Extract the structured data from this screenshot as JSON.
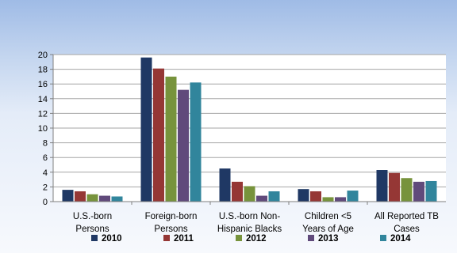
{
  "chart_data": {
    "type": "bar",
    "title": "",
    "xlabel": "",
    "ylabel": "",
    "ylim": [
      0,
      20
    ],
    "yticks": [
      0,
      2,
      4,
      6,
      8,
      10,
      12,
      14,
      16,
      18,
      20
    ],
    "grid": true,
    "legend_position": "bottom",
    "categories": [
      [
        "U.S.-born",
        "Persons"
      ],
      [
        "Foreign-born",
        "Persons"
      ],
      [
        "U.S.-born Non-",
        "Hispanic Blacks"
      ],
      [
        "Children <5",
        "Years of Age"
      ],
      [
        "All Reported TB",
        "Cases"
      ]
    ],
    "series": [
      {
        "name": "2010",
        "color": "#1f3864",
        "values": [
          1.6,
          19.6,
          4.5,
          1.7,
          4.3
        ]
      },
      {
        "name": "2011",
        "color": "#953735",
        "values": [
          1.4,
          18.1,
          2.7,
          1.4,
          3.9
        ]
      },
      {
        "name": "2012",
        "color": "#77933c",
        "values": [
          1.0,
          17.0,
          2.1,
          0.6,
          3.2
        ]
      },
      {
        "name": "2013",
        "color": "#604a7b",
        "values": [
          0.8,
          15.2,
          0.8,
          0.6,
          2.7
        ]
      },
      {
        "name": "2014",
        "color": "#31859c",
        "values": [
          0.7,
          16.2,
          1.4,
          1.5,
          2.8
        ]
      }
    ]
  }
}
